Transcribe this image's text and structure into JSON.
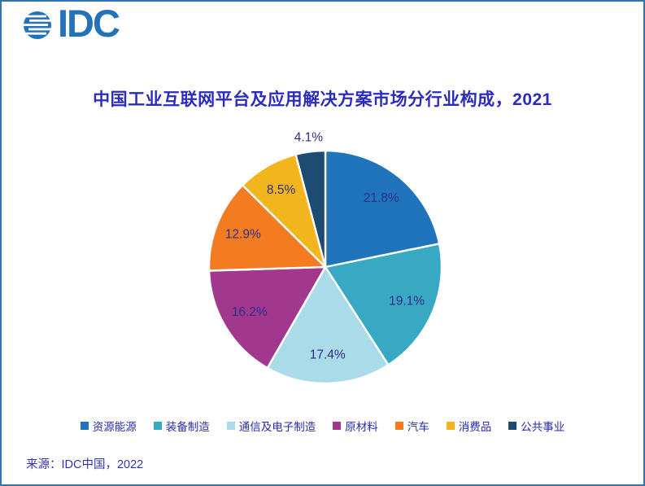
{
  "page": {
    "border_color": "#2E75B6",
    "background": "#FFFFFF"
  },
  "logo": {
    "text": "IDC",
    "color": "#2472B9",
    "icon": "globe-stripes-icon"
  },
  "title": {
    "text": "中国工业互联网平台及应用解决方案市场分行业构成，2021",
    "color": "#2B2BBD"
  },
  "chart_data": {
    "type": "pie",
    "title": "中国工业互联网平台及应用解决方案市场分行业构成，2021",
    "unit": "%",
    "start_angle_deg": 0,
    "direction": "clockwise",
    "label_color": "#2D2E88",
    "slice_border_color": "#FFFFFF",
    "legend_position": "bottom",
    "slices": [
      {
        "label": "资源能源",
        "value": 21.8,
        "color": "#2074BC",
        "label_position": "inside"
      },
      {
        "label": "装备制造",
        "value": 19.1,
        "color": "#39A8C3",
        "label_position": "inside"
      },
      {
        "label": "通信及电子制造",
        "value": 17.4,
        "color": "#AADBE8",
        "label_position": "inside"
      },
      {
        "label": "原材料",
        "value": 16.2,
        "color": "#A1388E",
        "label_position": "inside"
      },
      {
        "label": "汽车",
        "value": 12.9,
        "color": "#F37B21",
        "label_position": "inside"
      },
      {
        "label": "消费品",
        "value": 8.5,
        "color": "#F2B51D",
        "label_position": "inside"
      },
      {
        "label": "公共事业",
        "value": 4.1,
        "color": "#1D4B72",
        "label_position": "outside"
      }
    ]
  },
  "legend": {
    "text_color": "#2B2BA6"
  },
  "source": {
    "text": "来源：IDC中国，2022",
    "color": "#3434B0"
  }
}
